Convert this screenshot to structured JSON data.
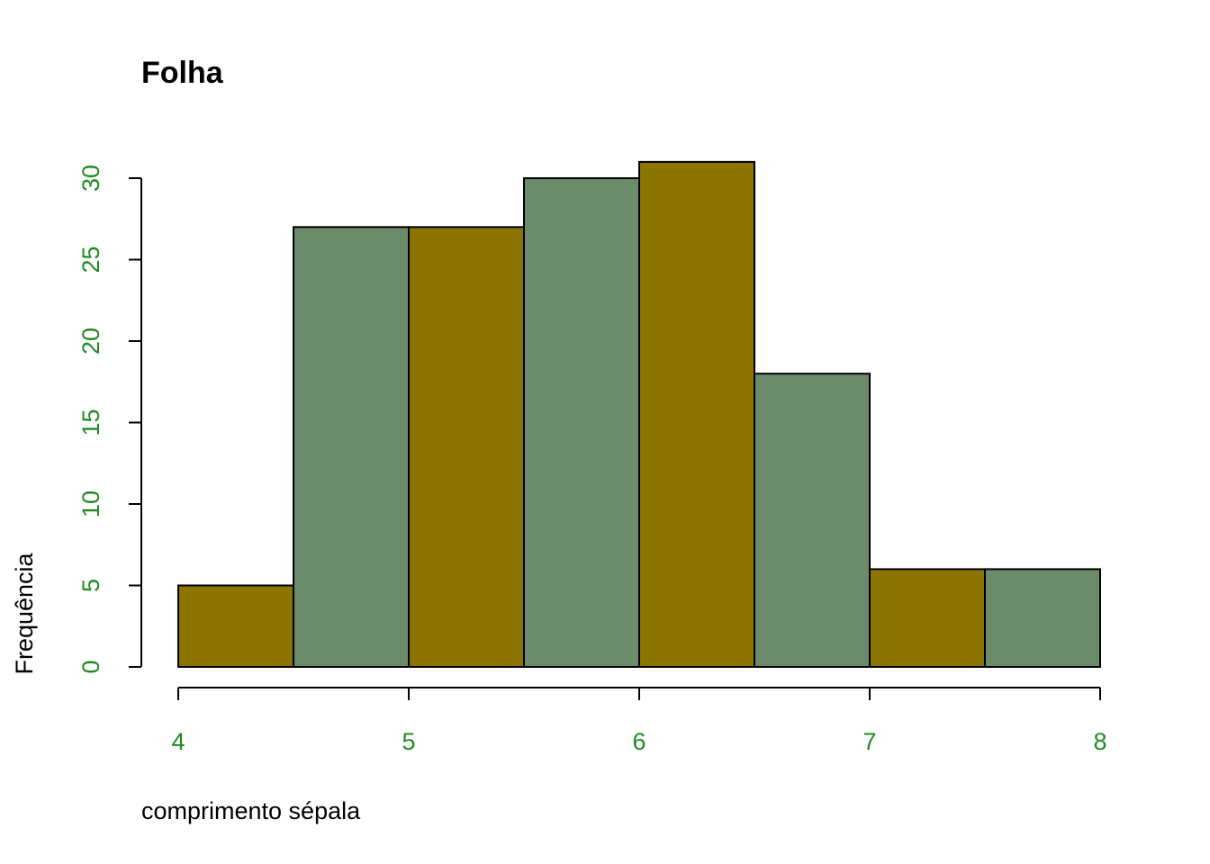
{
  "chart_data": {
    "type": "bar",
    "title": "Folha",
    "xlabel": "comprimento sépala",
    "ylabel": "Frequência",
    "bins": [
      {
        "start": 4.0,
        "end": 4.5,
        "count": 5
      },
      {
        "start": 4.5,
        "end": 5.0,
        "count": 27
      },
      {
        "start": 5.0,
        "end": 5.5,
        "count": 27
      },
      {
        "start": 5.5,
        "end": 6.0,
        "count": 30
      },
      {
        "start": 6.0,
        "end": 6.5,
        "count": 31
      },
      {
        "start": 6.5,
        "end": 7.0,
        "count": 18
      },
      {
        "start": 7.0,
        "end": 7.5,
        "count": 6
      },
      {
        "start": 7.5,
        "end": 8.0,
        "count": 6
      }
    ],
    "xticks": [
      "4",
      "5",
      "6",
      "7",
      "8"
    ],
    "yticks": [
      "0",
      "5",
      "10",
      "15",
      "20",
      "25",
      "30"
    ],
    "xlim": [
      4,
      8
    ],
    "ylim": [
      0,
      30
    ],
    "grid": false,
    "colors": {
      "bar_fill": [
        "#8B7500",
        "#6B8B6B"
      ],
      "tick_labels": "#228B22",
      "axis": "#000000"
    }
  }
}
